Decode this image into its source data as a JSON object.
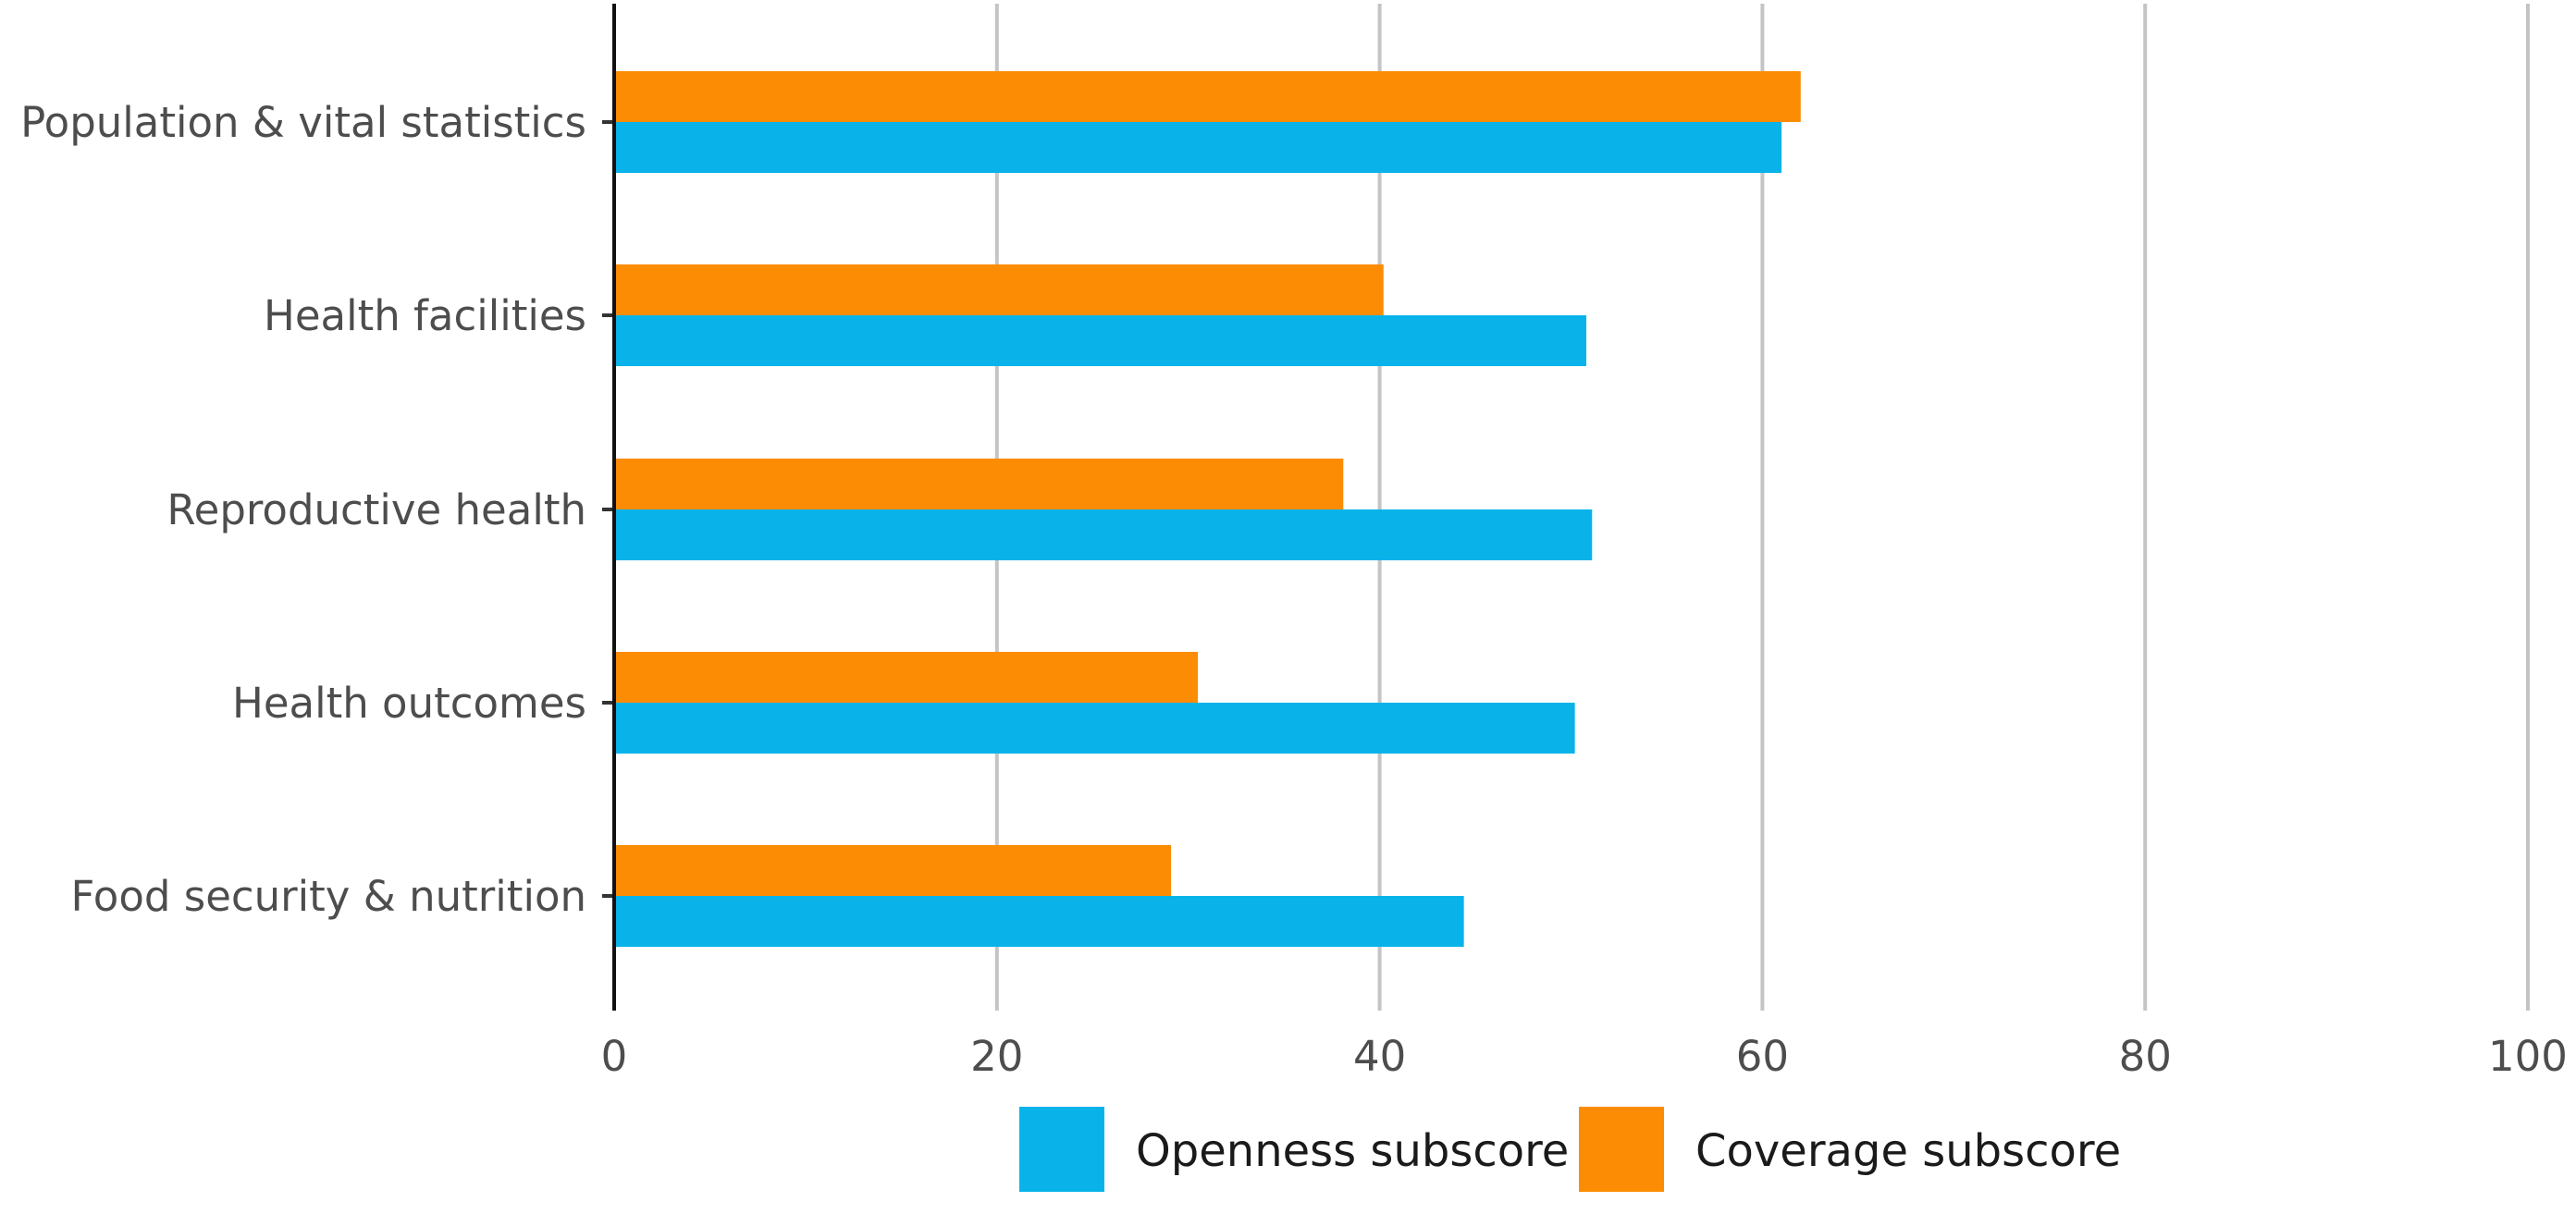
{
  "chart_data": {
    "type": "bar",
    "orientation": "horizontal",
    "categories": [
      "Population & vital statistics",
      "Health facilities",
      "Reproductive health",
      "Health outcomes",
      "Food security & nutrition"
    ],
    "series": [
      {
        "name": "Coverage subscore",
        "color": "#FC8C03",
        "values": [
          62,
          40.2,
          38.1,
          30.5,
          29.1
        ]
      },
      {
        "name": "Openness subscore",
        "color": "#09B3EA",
        "values": [
          61,
          50.8,
          51.1,
          50.2,
          44.4
        ]
      }
    ],
    "xlim": [
      0,
      100
    ],
    "xticks": [
      "0",
      "20",
      "40",
      "60",
      "80",
      "100"
    ],
    "grid": "vertical",
    "legend": {
      "placement": "bottom",
      "items": [
        {
          "label": "Openness subscore",
          "color": "#09B3EA"
        },
        {
          "label": "Coverage subscore",
          "color": "#FC8C03"
        }
      ]
    },
    "title": "",
    "xlabel": "",
    "ylabel": ""
  }
}
